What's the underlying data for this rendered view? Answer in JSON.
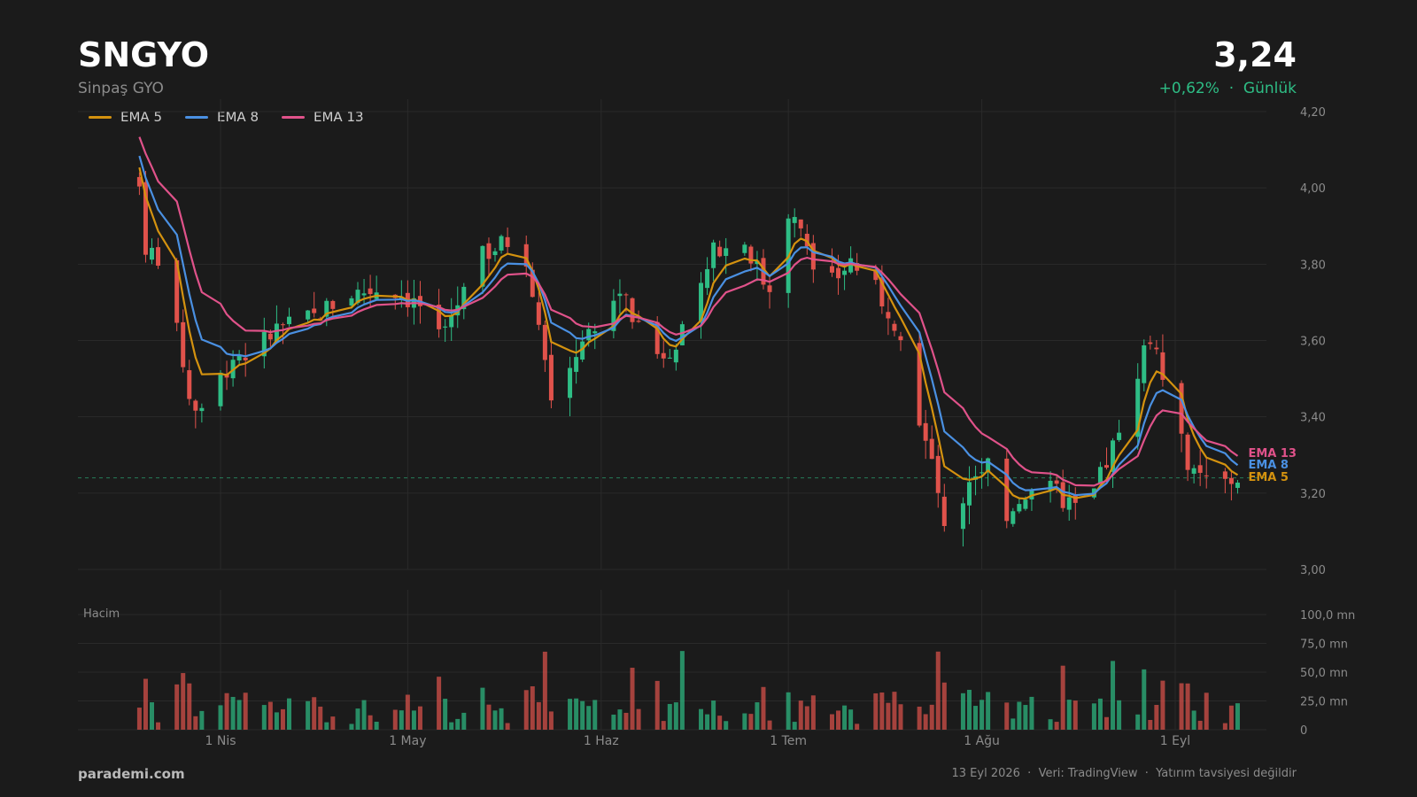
{
  "header": {
    "ticker": "SNGYO",
    "company": "Sinpaş GYO",
    "price": "3,24",
    "change": "+0,62%  ·  Günlük"
  },
  "colors": {
    "background": "#1b1b1b",
    "up": "#2ebd85",
    "down": "#e0524b",
    "ema5": "#d4920f",
    "ema8": "#4a90e2",
    "ema13": "#e0528a",
    "grid": "#2a2a2a"
  },
  "legend": [
    {
      "label": "EMA 5",
      "color": "#d4920f"
    },
    {
      "label": "EMA 8",
      "color": "#4a90e2"
    },
    {
      "label": "EMA 13",
      "color": "#e0528a"
    }
  ],
  "volume_label": "Hacim",
  "footer": {
    "brand": "parademi.com",
    "info": "13 Eyl 2026  ·  Veri: TradingView  ·  Yatırım tavsiyesi değildir"
  },
  "chart_data": {
    "type": "candlestick",
    "price_axis": {
      "min": 3.0,
      "max": 4.2,
      "ticks": [
        "4,20",
        "4,00",
        "3,80",
        "3,60",
        "3,40",
        "3,20",
        "3,00"
      ]
    },
    "volume_axis": {
      "min": 0,
      "max": 100,
      "unit": "mn",
      "ticks": [
        "100,0 mn",
        "75,0 mn",
        "50,0 mn",
        "25,0 mn",
        "0"
      ]
    },
    "x_labels": [
      {
        "label": "1 Nis",
        "day": 0
      },
      {
        "label": "1 May",
        "day": 30
      },
      {
        "label": "1 Haz",
        "day": 61
      },
      {
        "label": "1 Tem",
        "day": 91
      },
      {
        "label": "1 Ağu",
        "day": 122
      },
      {
        "label": "1 Eyl",
        "day": 153
      }
    ],
    "first_day": -13,
    "last_day": 163,
    "current_price": 3.24,
    "ema_labels": [
      "EMA 13",
      "EMA 8",
      "EMA 5"
    ],
    "anchors": [
      [
        -13,
        4.0
      ],
      [
        -12,
        3.85
      ],
      [
        -9,
        3.8
      ],
      [
        -7,
        3.62
      ],
      [
        -5,
        3.45
      ],
      [
        -3,
        3.4
      ],
      [
        -1,
        3.47
      ],
      [
        2,
        3.56
      ],
      [
        6,
        3.58
      ],
      [
        9,
        3.63
      ],
      [
        15,
        3.66
      ],
      [
        20,
        3.72
      ],
      [
        27,
        3.74
      ],
      [
        32,
        3.69
      ],
      [
        35,
        3.6
      ],
      [
        38,
        3.7
      ],
      [
        42,
        3.82
      ],
      [
        46,
        3.86
      ],
      [
        49,
        3.82
      ],
      [
        51,
        3.62
      ],
      [
        53,
        3.45
      ],
      [
        56,
        3.55
      ],
      [
        60,
        3.62
      ],
      [
        64,
        3.73
      ],
      [
        67,
        3.63
      ],
      [
        71,
        3.57
      ],
      [
        75,
        3.63
      ],
      [
        79,
        3.83
      ],
      [
        84,
        3.86
      ],
      [
        88,
        3.72
      ],
      [
        91,
        3.92
      ],
      [
        93,
        3.9
      ],
      [
        97,
        3.73
      ],
      [
        101,
        3.81
      ],
      [
        105,
        3.73
      ],
      [
        109,
        3.63
      ],
      [
        112,
        3.4
      ],
      [
        115,
        3.2
      ],
      [
        117,
        3.06
      ],
      [
        120,
        3.24
      ],
      [
        123,
        3.28
      ],
      [
        126,
        3.15
      ],
      [
        130,
        3.22
      ],
      [
        134,
        3.2
      ],
      [
        137,
        3.15
      ],
      [
        140,
        3.2
      ],
      [
        145,
        3.4
      ],
      [
        148,
        3.58
      ],
      [
        150,
        3.6
      ],
      [
        153,
        3.38
      ],
      [
        156,
        3.24
      ],
      [
        160,
        3.22
      ],
      [
        163,
        3.24
      ]
    ],
    "seed": 7
  }
}
